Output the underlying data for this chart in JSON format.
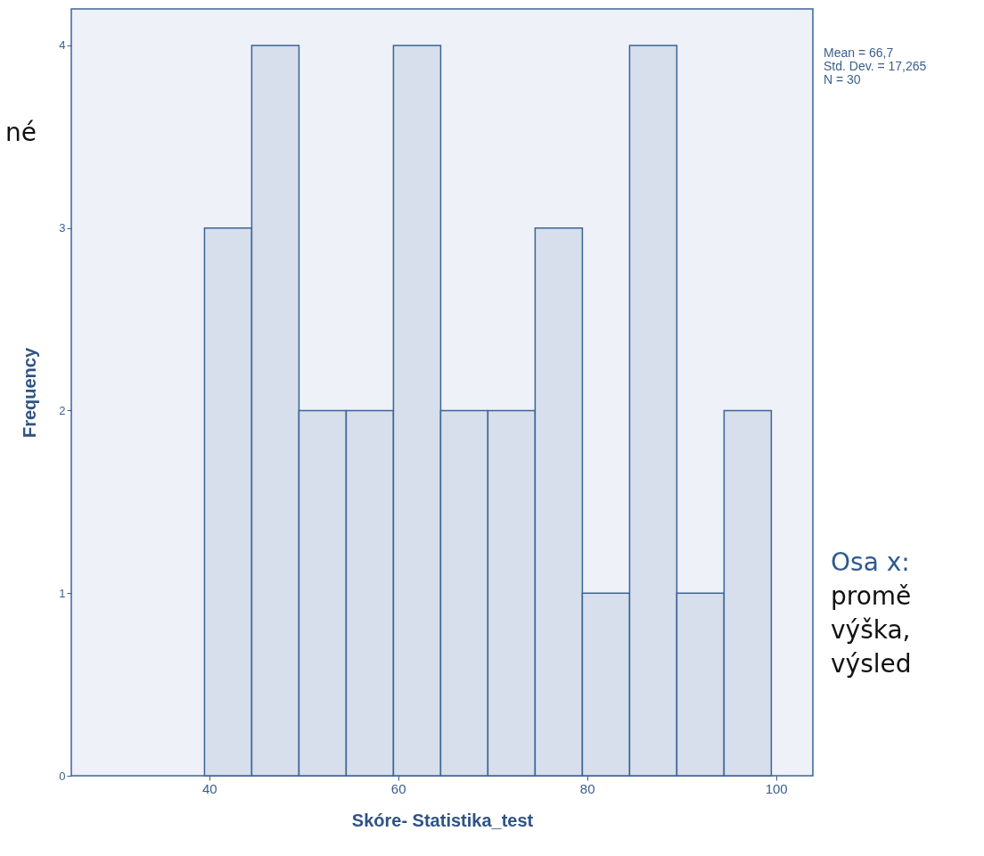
{
  "chart_data": {
    "type": "histogram",
    "xlabel": "Skóre- Statistika_test",
    "ylabel": "Frequency",
    "bins": [
      39.5,
      44.5,
      49.5,
      54.5,
      59.5,
      64.5,
      69.5,
      74.5,
      79.5,
      84.5,
      89.5,
      94.5,
      99.5
    ],
    "values": [
      3,
      4,
      2,
      2,
      4,
      2,
      2,
      3,
      1,
      4,
      1,
      2
    ],
    "color": "#d6dfeb",
    "xlim": [
      25.4,
      103.9
    ],
    "xticks": [
      40,
      60,
      80,
      100
    ],
    "ylim": [
      0,
      4.2
    ],
    "yticks": [
      0,
      1,
      2,
      3,
      4
    ],
    "grid": false,
    "annotations": [
      "Mean = 66,7",
      "Std. Dev. = 17,265",
      "N = 30",
      "né",
      "Osa x:",
      "promě",
      "výška,",
      "výsled"
    ]
  }
}
